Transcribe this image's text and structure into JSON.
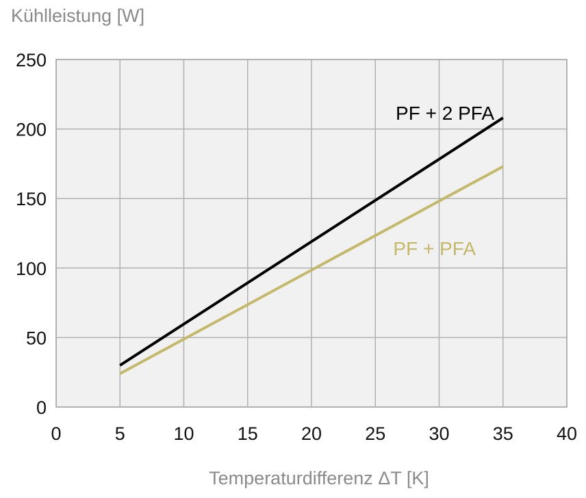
{
  "chart_data": {
    "type": "line",
    "title": "",
    "ylabel": "Kühlleistung [W]",
    "xlabel": "Temperaturdifferenz ΔT [K]",
    "xlim": [
      0,
      40
    ],
    "ylim": [
      0,
      250
    ],
    "xticks": [
      "0",
      "5",
      "10",
      "15",
      "20",
      "25",
      "30",
      "35",
      "40"
    ],
    "yticks": [
      "0",
      "50",
      "100",
      "150",
      "200",
      "250"
    ],
    "grid": true,
    "series": [
      {
        "name": "PF + 2 PFA",
        "color": "#000000",
        "x": [
          5,
          35
        ],
        "y": [
          30,
          208
        ]
      },
      {
        "name": "PF + PFA",
        "color": "#c4b86a",
        "x": [
          5,
          35
        ],
        "y": [
          24,
          173
        ]
      }
    ]
  }
}
